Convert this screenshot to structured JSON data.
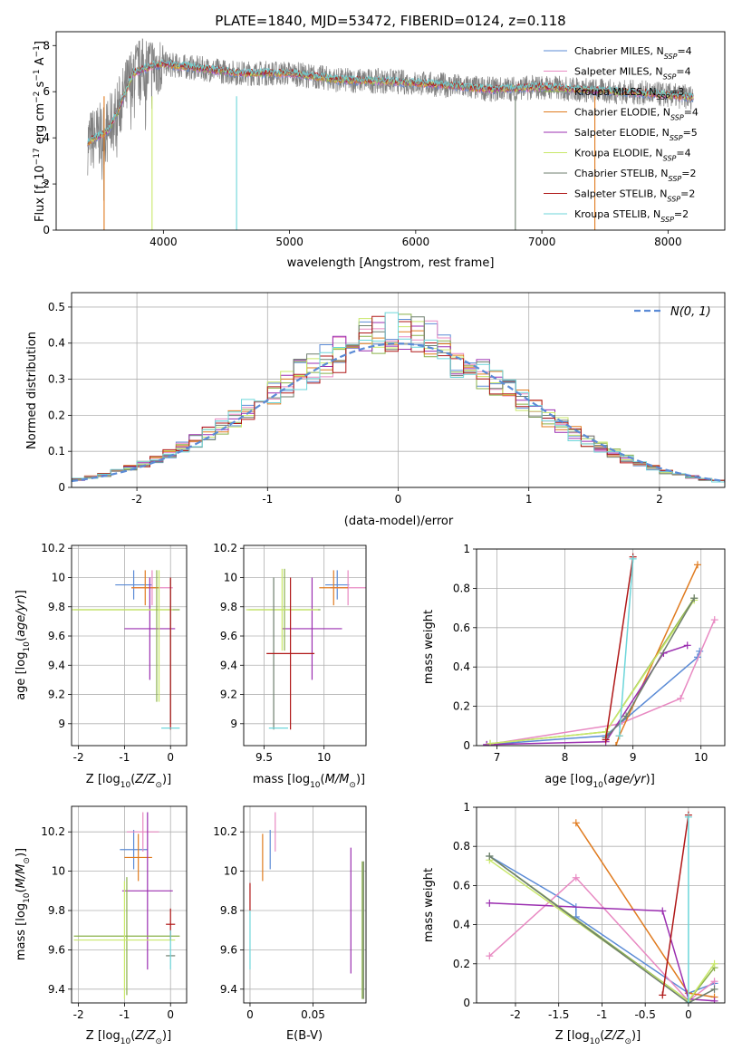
{
  "colors": {
    "chabrier_miles": "#5b8bd6",
    "salpeter_miles": "#e889c2",
    "kroupa_miles": "#8ab04a",
    "chabrier_elodie": "#e07b1f",
    "salpeter_elodie": "#9b2fb0",
    "kroupa_elodie": "#c9e86a",
    "chabrier_stelib": "#6f7f6f",
    "salpeter_stelib": "#b01818",
    "kroupa_stelib": "#6dd6da"
  },
  "chart_data": [
    {
      "id": "spectrum",
      "type": "line",
      "title": "PLATE=1840, MJD=53472, FIBERID=0124, z=0.118",
      "xlabel": "wavelength [Angstrom, rest frame]",
      "ylabel": "Flux [f_λ 10^-17 erg cm^-2 s^-1 A^-1]",
      "xlim": [
        3150,
        8450
      ],
      "ylim": [
        0,
        8.6
      ],
      "xticks": [
        4000,
        5000,
        6000,
        7000,
        8000
      ],
      "yticks": [
        0,
        2,
        4,
        6,
        8
      ],
      "grid": false,
      "legend_position": "upper-right",
      "legend": [
        {
          "label": "Chabrier MILES, N_SSP=4",
          "color_key": "chabrier_miles"
        },
        {
          "label": "Salpeter MILES, N_SSP=4",
          "color_key": "salpeter_miles"
        },
        {
          "label": "Kroupa MILES, N_SSP=3",
          "color_key": "kroupa_miles"
        },
        {
          "label": "Chabrier ELODIE, N_SSP=4",
          "color_key": "chabrier_elodie"
        },
        {
          "label": "Salpeter ELODIE, N_SSP=5",
          "color_key": "salpeter_elodie"
        },
        {
          "label": "Kroupa ELODIE, N_SSP=4",
          "color_key": "kroupa_elodie"
        },
        {
          "label": "Chabrier STELIB, N_SSP=2",
          "color_key": "chabrier_stelib"
        },
        {
          "label": "Salpeter STELIB, N_SSP=2",
          "color_key": "salpeter_stelib"
        },
        {
          "label": "Kroupa STELIB, N_SSP=2",
          "color_key": "kroupa_stelib"
        }
      ],
      "data_range": [
        3400,
        8200
      ],
      "continuum": [
        [
          3400,
          3.8
        ],
        [
          3560,
          4.3
        ],
        [
          3650,
          5.3
        ],
        [
          3760,
          6.8
        ],
        [
          3900,
          7.1
        ],
        [
          4000,
          7.2
        ],
        [
          4300,
          7.0
        ],
        [
          4600,
          6.8
        ],
        [
          5000,
          6.8
        ],
        [
          5400,
          6.5
        ],
        [
          5800,
          6.45
        ],
        [
          6200,
          6.3
        ],
        [
          6600,
          6.1
        ],
        [
          7000,
          6.2
        ],
        [
          7400,
          6.05
        ],
        [
          7800,
          5.95
        ],
        [
          8200,
          5.75
        ]
      ],
      "noise_amplitude": 0.55,
      "dips": [
        [
          4580,
          0
        ],
        [
          6790,
          0
        ],
        [
          7420,
          0
        ],
        [
          3910,
          0
        ],
        [
          3530,
          0
        ]
      ]
    },
    {
      "id": "residuals",
      "type": "line",
      "xlabel": "(data-model)/error",
      "ylabel": "Normed distribution",
      "xlim": [
        -2.5,
        2.5
      ],
      "ylim": [
        0,
        0.54
      ],
      "xticks": [
        -2,
        -1,
        0,
        1,
        2
      ],
      "yticks": [
        0.0,
        0.1,
        0.2,
        0.3,
        0.4,
        0.5
      ],
      "grid": true,
      "legend_position": "upper-right",
      "gaussian_label": "N(0, 1)",
      "bin_width": 0.1
    },
    {
      "id": "z-age",
      "type": "scatter",
      "xlabel": "Z [log10(Z/Z_sun)]",
      "ylabel": "age [log10(age/yr)]",
      "xlim": [
        -2.15,
        0.35
      ],
      "ylim": [
        8.85,
        10.22
      ],
      "xticks": [
        -2,
        -1,
        0
      ],
      "yticks": [
        9.0,
        9.2,
        9.4,
        9.6,
        9.8,
        10.0,
        10.2
      ],
      "grid": true,
      "points": [
        {
          "c": "chabrier_miles",
          "x": -0.8,
          "xerr": 0.4,
          "y": 9.95,
          "yerr": 0.1
        },
        {
          "c": "salpeter_miles",
          "x": -0.4,
          "xerr": 0.45,
          "y": 9.93,
          "yerr": 0.12
        },
        {
          "c": "chabrier_elodie",
          "x": -0.55,
          "xerr": 0.3,
          "y": 9.93,
          "yerr": 0.12
        },
        {
          "c": "salpeter_elodie",
          "x": -0.45,
          "xerr": 0.55,
          "y": 9.65,
          "yerr": 0.35
        },
        {
          "c": "kroupa_miles",
          "x": -0.95,
          "xerr": 1.15,
          "y": 9.78,
          "yerr": 0.0
        },
        {
          "c": "kroupa_elodie",
          "x": -1.05,
          "xerr": 1.1,
          "y": 9.78,
          "yerr": 0.0
        },
        {
          "c": "kroupa_miles",
          "x": -0.3,
          "xerr": 0.0,
          "y": 9.6,
          "yerr": 0.45
        },
        {
          "c": "kroupa_elodie",
          "x": -0.25,
          "xerr": 0.0,
          "y": 9.6,
          "yerr": 0.45
        },
        {
          "c": "chabrier_stelib",
          "x": 0.0,
          "xerr": 0.0,
          "y": 9.5,
          "yerr": 0.5
        },
        {
          "c": "salpeter_stelib",
          "x": 0.0,
          "xerr": 0.0,
          "y": 9.48,
          "yerr": 0.52
        },
        {
          "c": "kroupa_stelib",
          "x": 0.0,
          "xerr": 0.2,
          "y": 8.97,
          "yerr": 0.0
        }
      ]
    },
    {
      "id": "mass-age",
      "type": "scatter",
      "xlabel": "mass [log10(M/M_sun)]",
      "ylabel": "",
      "xlim": [
        9.33,
        10.35
      ],
      "ylim": [
        8.85,
        10.22
      ],
      "xticks": [
        9.5,
        10.0
      ],
      "yticks": [
        9.0,
        9.2,
        9.4,
        9.6,
        9.8,
        10.0,
        10.2
      ],
      "grid": true,
      "points": [
        {
          "c": "chabrier_miles",
          "x": 10.11,
          "xerr": 0.1,
          "y": 9.95,
          "yerr": 0.1
        },
        {
          "c": "salpeter_miles",
          "x": 10.2,
          "xerr": 0.15,
          "y": 9.93,
          "yerr": 0.12
        },
        {
          "c": "chabrier_elodie",
          "x": 10.08,
          "xerr": 0.12,
          "y": 9.93,
          "yerr": 0.12
        },
        {
          "c": "salpeter_elodie",
          "x": 9.9,
          "xerr": 0.25,
          "y": 9.65,
          "yerr": 0.35
        },
        {
          "c": "kroupa_miles",
          "x": 9.67,
          "xerr": 0.3,
          "y": 9.78,
          "yerr": 0.28
        },
        {
          "c": "kroupa_elodie",
          "x": 9.65,
          "xerr": 0.3,
          "y": 9.78,
          "yerr": 0.28
        },
        {
          "c": "chabrier_stelib",
          "x": 9.58,
          "xerr": 0.0,
          "y": 9.48,
          "yerr": 0.52
        },
        {
          "c": "salpeter_stelib",
          "x": 9.72,
          "xerr": 0.2,
          "y": 9.48,
          "yerr": 0.52
        },
        {
          "c": "kroupa_stelib",
          "x": 9.62,
          "xerr": 0.08,
          "y": 8.97,
          "yerr": 0.0
        }
      ]
    },
    {
      "id": "weights-age",
      "type": "line",
      "xlabel": "age [log10(age/yr)]",
      "ylabel": "mass weight",
      "xlim": [
        6.7,
        10.35
      ],
      "ylim": [
        0,
        1.0
      ],
      "xticks": [
        7,
        8,
        9,
        10
      ],
      "yticks": [
        0.0,
        0.2,
        0.4,
        0.6,
        0.8,
        1.0
      ],
      "grid": true,
      "series": [
        {
          "c": "chabrier_miles",
          "x": [
            6.85,
            8.6,
            9.95,
            9.98
          ],
          "y": [
            0.005,
            0.05,
            0.45,
            0.48
          ]
        },
        {
          "c": "salpeter_miles",
          "x": [
            6.85,
            8.8,
            9.7,
            10.2
          ],
          "y": [
            0.005,
            0.11,
            0.24,
            0.64
          ]
        },
        {
          "c": "kroupa_miles",
          "x": [
            6.9,
            8.6,
            9.9
          ],
          "y": [
            0.01,
            0.07,
            0.75
          ]
        },
        {
          "c": "chabrier_elodie",
          "x": [
            8.75,
            8.8,
            9.95
          ],
          "y": [
            0.0,
            0.05,
            0.92
          ]
        },
        {
          "c": "salpeter_elodie",
          "x": [
            6.85,
            8.6,
            9.45,
            9.8
          ],
          "y": [
            0.005,
            0.02,
            0.47,
            0.51
          ]
        },
        {
          "c": "kroupa_elodie",
          "x": [
            6.9,
            8.6,
            9.9
          ],
          "y": [
            0.01,
            0.07,
            0.74
          ]
        },
        {
          "c": "chabrier_stelib",
          "x": [
            8.6,
            8.9,
            9.9
          ],
          "y": [
            0.04,
            0.15,
            0.75
          ]
        },
        {
          "c": "salpeter_stelib",
          "x": [
            8.6,
            9.0
          ],
          "y": [
            0.03,
            0.96
          ]
        },
        {
          "c": "kroupa_stelib",
          "x": [
            8.8,
            9.0
          ],
          "y": [
            0.05,
            0.95
          ]
        }
      ]
    },
    {
      "id": "z-mass",
      "type": "scatter",
      "xlabel": "Z [log10(Z/Z_sun)]",
      "ylabel": "mass [log10(M/M_sun)]",
      "xlim": [
        -2.15,
        0.35
      ],
      "ylim": [
        9.33,
        10.33
      ],
      "xticks": [
        -2,
        -1,
        0
      ],
      "yticks": [
        9.4,
        9.6,
        9.8,
        10.0,
        10.2
      ],
      "grid": true,
      "points": [
        {
          "c": "chabrier_miles",
          "x": -0.8,
          "xerr": 0.3,
          "y": 10.11,
          "yerr": 0.1
        },
        {
          "c": "salpeter_miles",
          "x": -0.6,
          "xerr": 0.35,
          "y": 10.2,
          "yerr": 0.1
        },
        {
          "c": "chabrier_elodie",
          "x": -0.7,
          "xerr": 0.3,
          "y": 10.07,
          "yerr": 0.12
        },
        {
          "c": "salpeter_elodie",
          "x": -0.5,
          "xerr": 0.55,
          "y": 9.9,
          "yerr": 0.4
        },
        {
          "c": "kroupa_miles",
          "x": -0.95,
          "xerr": 1.15,
          "y": 9.67,
          "yerr": 0.3
        },
        {
          "c": "kroupa_elodie",
          "x": -1.0,
          "xerr": 1.1,
          "y": 9.65,
          "yerr": 0.3
        },
        {
          "c": "chabrier_stelib",
          "x": 0.0,
          "xerr": 0.1,
          "y": 9.57,
          "yerr": 0.0
        },
        {
          "c": "salpeter_stelib",
          "x": 0.0,
          "xerr": 0.1,
          "y": 9.73,
          "yerr": 0.08
        },
        {
          "c": "kroupa_stelib",
          "x": 0.0,
          "xerr": 0.0,
          "y": 9.6,
          "yerr": 0.1
        }
      ]
    },
    {
      "id": "ebv-mass",
      "type": "scatter",
      "xlabel": "E(B-V)",
      "ylabel": "",
      "xlim": [
        -0.005,
        0.092
      ],
      "ylim": [
        9.33,
        10.33
      ],
      "xticks": [
        0.0,
        0.05
      ],
      "yticks": [
        9.4,
        9.6,
        9.8,
        10.0,
        10.2
      ],
      "grid": true,
      "points": [
        {
          "c": "chabrier_miles",
          "x": 0.016,
          "xerr": 0.0,
          "y": 10.11,
          "yerr": 0.1
        },
        {
          "c": "salpeter_miles",
          "x": 0.02,
          "xerr": 0.0,
          "y": 10.2,
          "yerr": 0.1
        },
        {
          "c": "chabrier_elodie",
          "x": 0.01,
          "xerr": 0.0,
          "y": 10.07,
          "yerr": 0.12
        },
        {
          "c": "salpeter_elodie",
          "x": 0.08,
          "xerr": 0.0,
          "y": 9.8,
          "yerr": 0.32
        },
        {
          "c": "kroupa_miles",
          "x": 0.089,
          "xerr": 0.0,
          "y": 9.7,
          "yerr": 0.35
        },
        {
          "c": "kroupa_elodie",
          "x": 0.09,
          "xerr": 0.0,
          "y": 9.7,
          "yerr": 0.35
        },
        {
          "c": "chabrier_stelib",
          "x": 0.09,
          "xerr": 0.0,
          "y": 9.7,
          "yerr": 0.35
        },
        {
          "c": "salpeter_stelib",
          "x": 0.0,
          "xerr": 0.0,
          "y": 9.87,
          "yerr": 0.07
        },
        {
          "c": "kroupa_stelib",
          "x": 0.0,
          "xerr": 0.0,
          "y": 9.65,
          "yerr": 0.15
        }
      ]
    },
    {
      "id": "weights-z",
      "type": "line",
      "xlabel": "Z [log10(Z/Z_sun)]",
      "ylabel": "mass weight",
      "xlim": [
        -2.45,
        0.42
      ],
      "ylim": [
        0,
        1.0
      ],
      "xticks": [
        -2.0,
        -1.5,
        -1.0,
        -0.5,
        0.0
      ],
      "yticks": [
        0.0,
        0.2,
        0.4,
        0.6,
        0.8,
        1.0
      ],
      "grid": true,
      "series": [
        {
          "c": "chabrier_miles",
          "x": [
            -2.3,
            -1.3,
            -1.3,
            0.0,
            0.3
          ],
          "y": [
            0.75,
            0.49,
            0.44,
            0.05,
            0.1
          ]
        },
        {
          "c": "salpeter_miles",
          "x": [
            -2.3,
            -1.3,
            0.0,
            0.3
          ],
          "y": [
            0.24,
            0.64,
            0.01,
            0.11
          ]
        },
        {
          "c": "kroupa_miles",
          "x": [
            -2.3,
            0.0,
            0.3
          ],
          "y": [
            0.75,
            0.01,
            0.18
          ]
        },
        {
          "c": "chabrier_elodie",
          "x": [
            -1.3,
            0.0,
            0.3
          ],
          "y": [
            0.92,
            0.05,
            0.03
          ]
        },
        {
          "c": "salpeter_elodie",
          "x": [
            -2.3,
            -0.3,
            0.0,
            0.3
          ],
          "y": [
            0.51,
            0.47,
            0.02,
            0.01
          ]
        },
        {
          "c": "kroupa_elodie",
          "x": [
            -2.3,
            0.0,
            0.3
          ],
          "y": [
            0.73,
            0.01,
            0.2
          ]
        },
        {
          "c": "chabrier_stelib",
          "x": [
            -2.3,
            0.0,
            0.3
          ],
          "y": [
            0.75,
            0.0,
            0.07
          ]
        },
        {
          "c": "salpeter_stelib",
          "x": [
            -0.3,
            0.0
          ],
          "y": [
            0.04,
            0.96
          ]
        },
        {
          "c": "kroupa_stelib",
          "x": [
            0.0,
            0.0
          ],
          "y": [
            0.0,
            0.95
          ]
        }
      ]
    }
  ]
}
